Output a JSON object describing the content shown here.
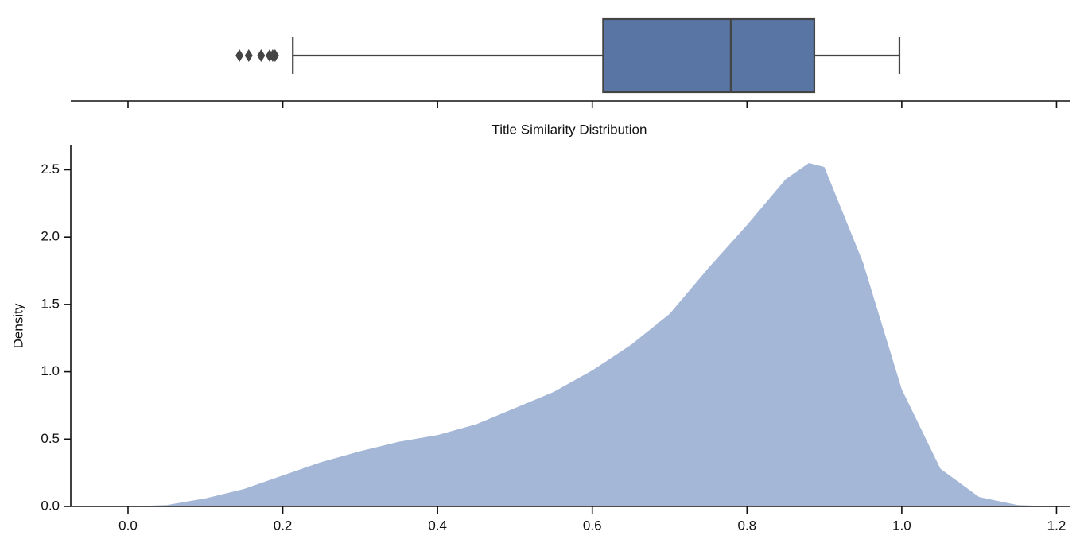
{
  "chart_data": [
    {
      "type": "box",
      "color": "#5975a4",
      "xlim": [
        -0.074,
        1.217
      ],
      "whisker_low": 0.213,
      "q1": 0.614,
      "median": 0.779,
      "q3": 0.887,
      "whisker_high": 0.997,
      "outliers": [
        0.144,
        0.156,
        0.172,
        0.183,
        0.187,
        0.19
      ]
    },
    {
      "type": "area",
      "title": "Title Similarity Distribution",
      "ylabel": "Density",
      "color": "#a5b7d7",
      "x": [
        0,
        0.05,
        0.1,
        0.15,
        0.2,
        0.25,
        0.3,
        0.35,
        0.4,
        0.45,
        0.5,
        0.55,
        0.6,
        0.65,
        0.7,
        0.75,
        0.8,
        0.85,
        0.88,
        0.9,
        0.95,
        1.0,
        1.05,
        1.1,
        1.15,
        1.2
      ],
      "values": [
        0,
        0.01,
        0.06,
        0.13,
        0.23,
        0.33,
        0.41,
        0.48,
        0.53,
        0.61,
        0.73,
        0.85,
        1.01,
        1.2,
        1.43,
        1.77,
        2.09,
        2.43,
        2.55,
        2.52,
        1.81,
        0.87,
        0.28,
        0.07,
        0.01,
        0
      ],
      "xlim": [
        -0.074,
        1.217
      ],
      "ylim": [
        0,
        2.68
      ],
      "xticks": [
        {
          "value": 0,
          "label": "0.0"
        },
        0.2,
        0.4,
        0.6,
        0.8,
        {
          "value": 1,
          "label": "1.0"
        },
        1.2
      ],
      "yticks": [
        {
          "value": 0,
          "label": "0.0"
        },
        0.5,
        {
          "value": 1,
          "label": "1.0"
        },
        1.5,
        {
          "value": 2,
          "label": "2.0"
        },
        2.5
      ]
    }
  ]
}
